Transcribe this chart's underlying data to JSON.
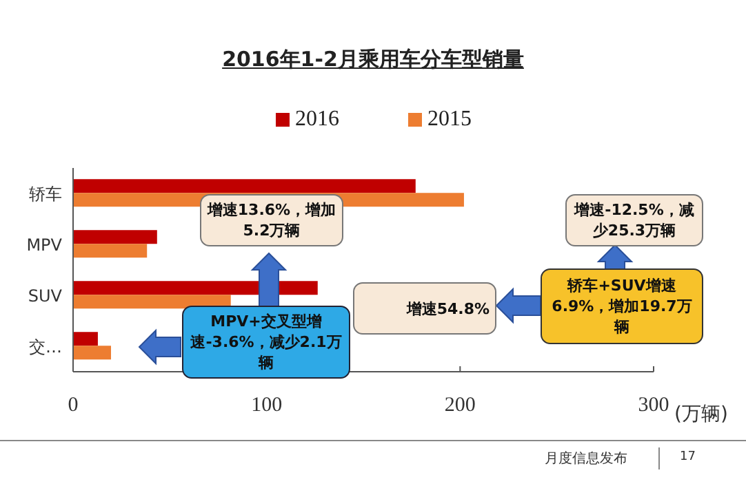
{
  "chart_data": {
    "type": "bar",
    "orientation": "horizontal",
    "title": "2016年1-2月乘用车分车型销量",
    "xlabel": "(万辆)",
    "categories": [
      "轿车",
      "MPV",
      "SUV",
      "交…"
    ],
    "series": [
      {
        "name": "2016",
        "color": "#c00000",
        "values": [
          177,
          43.4,
          126.4,
          12.8
        ]
      },
      {
        "name": "2015",
        "color": "#ed7d31",
        "values": [
          202,
          38.2,
          81.5,
          19.6
        ]
      }
    ],
    "xlim": [
      0,
      300
    ],
    "xticks": [
      0,
      100,
      200,
      300
    ],
    "legend": "top",
    "annotations": [
      "增速13.6%，增加5.2万辆",
      "增速-12.5%，减少25.3万辆",
      "增速54.8%",
      "轿车+SUV增速6.9%，增加19.7万辆",
      "MPV+交叉型增速-3.6%，减少2.1万辆",
      "月度信息发布",
      "17"
    ]
  }
}
